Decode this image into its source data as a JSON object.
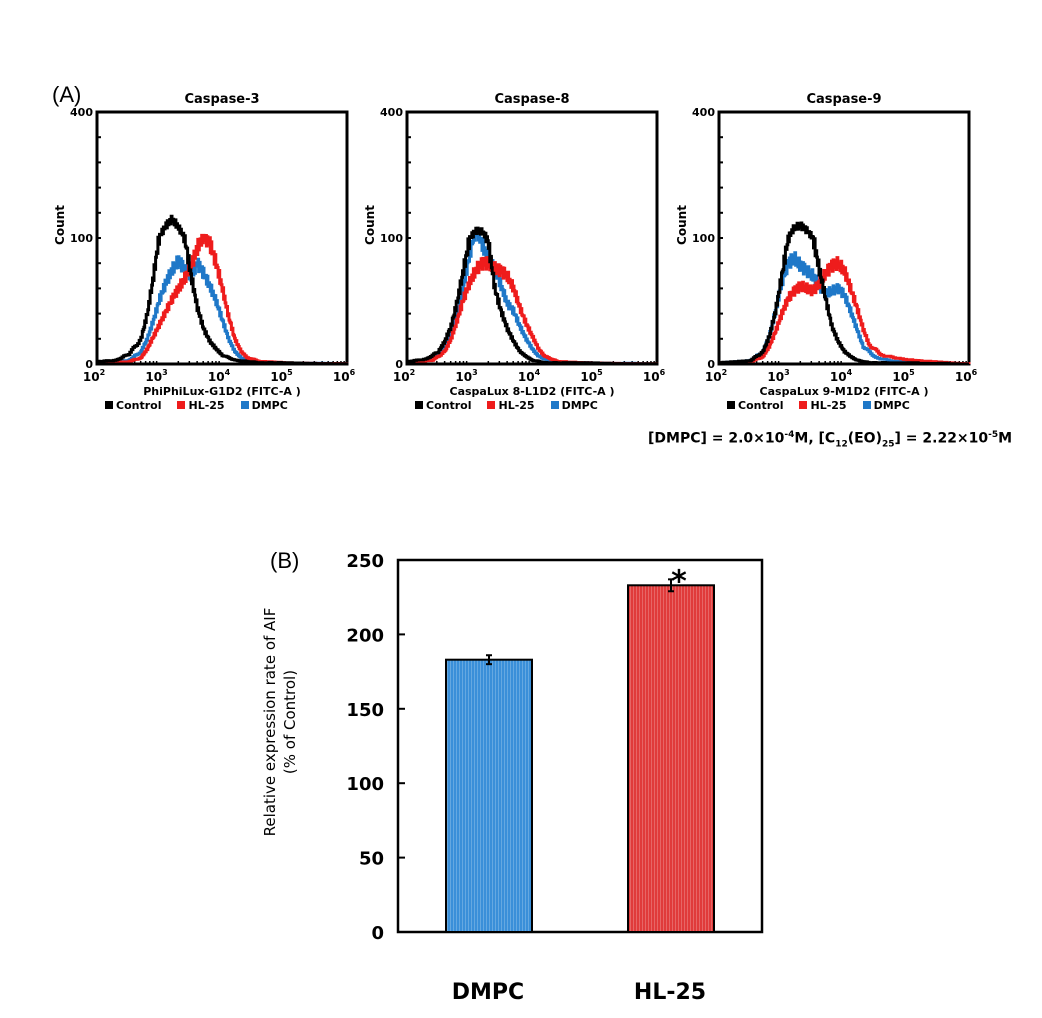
{
  "panel_a_label": "(A)",
  "panel_b_label": "(B)",
  "legend": [
    {
      "name": "Control",
      "color": "#000000"
    },
    {
      "name": "HL-25",
      "color": "#ee1c1c"
    },
    {
      "name": "DMPC",
      "color": "#1f78c8"
    }
  ],
  "note": {
    "part1": "[DMPC] = 2.0×10",
    "exp1": "-4",
    "part2": "M,  [C",
    "sub1": "12",
    "part3": "(EO)",
    "sub2": "25",
    "part4": "] = 2.22×10",
    "exp2": "-5",
    "part5": "M"
  },
  "chart_data": [
    {
      "type": "line",
      "title": "Caspase-3",
      "xlabel": "PhiPhiLux-G1D2 (FITC-A )",
      "ylabel": "Count",
      "xscale": "log",
      "xlim": [
        100,
        1000000
      ],
      "ylim": [
        0,
        400
      ],
      "yticks": [
        "0",
        "100",
        "400"
      ],
      "xticks": [
        "10^2",
        "10^3",
        "10^4",
        "10^5",
        "10^6"
      ],
      "series": [
        {
          "name": "Control",
          "color": "#000000",
          "peak_x": 1600,
          "peak_y": 145,
          "width": 0.28,
          "x_log": [
            2.0,
            2.3,
            2.5,
            2.7,
            2.8,
            2.9,
            3.0,
            3.1,
            3.2,
            3.3,
            3.4,
            3.5,
            3.6,
            3.7,
            3.8,
            3.9,
            4.0,
            4.2,
            4.4,
            4.6,
            5.0,
            6.0
          ],
          "y": [
            2,
            3,
            8,
            20,
            40,
            70,
            105,
            130,
            145,
            125,
            100,
            70,
            45,
            28,
            18,
            12,
            7,
            3,
            2,
            1,
            1,
            0
          ]
        },
        {
          "name": "HL-25",
          "color": "#ee1c1c",
          "x_log": [
            2.0,
            2.5,
            2.7,
            2.8,
            2.9,
            3.0,
            3.1,
            3.2,
            3.3,
            3.4,
            3.5,
            3.6,
            3.7,
            3.8,
            3.9,
            4.0,
            4.1,
            4.2,
            4.3,
            4.4,
            4.6,
            5.0,
            6.0
          ],
          "y": [
            1,
            2,
            5,
            12,
            22,
            32,
            42,
            52,
            60,
            68,
            78,
            92,
            103,
            96,
            80,
            60,
            38,
            20,
            10,
            5,
            2,
            1,
            0
          ]
        },
        {
          "name": "DMPC",
          "color": "#1f78c8",
          "x_log": [
            2.0,
            2.5,
            2.7,
            2.8,
            2.9,
            3.0,
            3.1,
            3.2,
            3.3,
            3.4,
            3.5,
            3.6,
            3.7,
            3.8,
            3.9,
            4.0,
            4.1,
            4.2,
            4.3,
            4.5,
            5.0,
            6.0
          ],
          "y": [
            1,
            3,
            10,
            20,
            35,
            52,
            65,
            75,
            82,
            75,
            70,
            80,
            72,
            62,
            50,
            35,
            20,
            10,
            5,
            2,
            1,
            0
          ]
        }
      ]
    },
    {
      "type": "line",
      "title": "Caspase-8",
      "xlabel": "CaspaLux 8-L1D2 (FITC-A )",
      "ylabel": "Count",
      "xscale": "log",
      "xlim": [
        100,
        1000000
      ],
      "ylim": [
        0,
        400
      ],
      "yticks": [
        "0",
        "100",
        "400"
      ],
      "xticks": [
        "10^2",
        "10^3",
        "10^4",
        "10^5",
        "10^6"
      ],
      "series": [
        {
          "name": "Control",
          "color": "#000000",
          "x_log": [
            2.0,
            2.3,
            2.5,
            2.6,
            2.7,
            2.8,
            2.9,
            3.0,
            3.1,
            3.2,
            3.3,
            3.4,
            3.5,
            3.6,
            3.7,
            3.8,
            3.9,
            4.0,
            4.2,
            4.5,
            6.0
          ],
          "y": [
            2,
            4,
            10,
            18,
            30,
            50,
            75,
            100,
            118,
            115,
            95,
            60,
            42,
            28,
            18,
            10,
            6,
            3,
            1,
            1,
            0
          ]
        },
        {
          "name": "HL-25",
          "color": "#ee1c1c",
          "x_log": [
            2.0,
            2.4,
            2.6,
            2.7,
            2.8,
            2.9,
            3.0,
            3.1,
            3.2,
            3.3,
            3.4,
            3.5,
            3.6,
            3.7,
            3.8,
            3.9,
            4.0,
            4.1,
            4.2,
            4.4,
            4.8,
            6.0
          ],
          "y": [
            1,
            3,
            10,
            20,
            35,
            52,
            65,
            75,
            80,
            80,
            76,
            74,
            70,
            60,
            45,
            32,
            22,
            12,
            6,
            2,
            1,
            0
          ]
        },
        {
          "name": "DMPC",
          "color": "#1f78c8",
          "x_log": [
            2.0,
            2.4,
            2.6,
            2.7,
            2.8,
            2.9,
            3.0,
            3.1,
            3.2,
            3.3,
            3.4,
            3.5,
            3.6,
            3.7,
            3.8,
            3.9,
            4.0,
            4.1,
            4.3,
            4.6,
            6.0
          ],
          "y": [
            1,
            4,
            14,
            25,
            40,
            62,
            88,
            110,
            95,
            82,
            76,
            62,
            48,
            42,
            30,
            20,
            12,
            6,
            2,
            1,
            0
          ]
        }
      ]
    },
    {
      "type": "line",
      "title": "Caspase-9",
      "xlabel": "CaspaLux 9-M1D2 (FITC-A )",
      "ylabel": "Count",
      "xscale": "log",
      "xlim": [
        100,
        1000000
      ],
      "ylim": [
        0,
        400
      ],
      "yticks": [
        "0",
        "100",
        "400"
      ],
      "xticks": [
        "10^2",
        "10^3",
        "10^4",
        "10^5",
        "10^6"
      ],
      "series": [
        {
          "name": "Control",
          "color": "#000000",
          "x_log": [
            2.0,
            2.5,
            2.7,
            2.8,
            2.9,
            3.0,
            3.1,
            3.2,
            3.3,
            3.4,
            3.5,
            3.6,
            3.7,
            3.8,
            3.9,
            4.0,
            4.1,
            4.2,
            4.4,
            4.7,
            6.0
          ],
          "y": [
            1,
            3,
            10,
            22,
            42,
            70,
            100,
            125,
            130,
            118,
            100,
            75,
            52,
            30,
            18,
            10,
            6,
            3,
            1,
            1,
            0
          ]
        },
        {
          "name": "HL-25",
          "color": "#ee1c1c",
          "x_log": [
            2.0,
            2.5,
            2.7,
            2.8,
            2.9,
            3.0,
            3.1,
            3.2,
            3.3,
            3.4,
            3.5,
            3.6,
            3.7,
            3.8,
            3.9,
            4.0,
            4.1,
            4.2,
            4.3,
            4.4,
            4.6,
            4.9,
            5.3,
            6.0
          ],
          "y": [
            1,
            2,
            6,
            14,
            26,
            40,
            52,
            58,
            62,
            60,
            58,
            64,
            72,
            78,
            80,
            74,
            60,
            45,
            28,
            15,
            7,
            4,
            2,
            0
          ]
        },
        {
          "name": "DMPC",
          "color": "#1f78c8",
          "x_log": [
            2.0,
            2.5,
            2.7,
            2.8,
            2.9,
            3.0,
            3.1,
            3.2,
            3.3,
            3.4,
            3.5,
            3.6,
            3.7,
            3.8,
            3.9,
            4.0,
            4.1,
            4.2,
            4.3,
            4.5,
            4.8,
            6.0
          ],
          "y": [
            1,
            3,
            10,
            22,
            42,
            65,
            80,
            84,
            78,
            74,
            70,
            62,
            56,
            58,
            60,
            55,
            42,
            28,
            14,
            5,
            2,
            0
          ]
        }
      ]
    },
    {
      "type": "bar",
      "title": "",
      "categories": [
        "DMPC",
        "HL-25"
      ],
      "values": [
        183,
        233
      ],
      "errors": [
        3,
        4
      ],
      "colors": [
        "#3a8fd9",
        "#e03b3b"
      ],
      "annotations": [
        {
          "category": "HL-25",
          "text": "*"
        }
      ],
      "xlabel": "",
      "ylabel_line1": "Relative expression rate of AIF",
      "ylabel_line2": "(% of Control)",
      "ylim": [
        0,
        250
      ],
      "yticks": [
        "0",
        "50",
        "100",
        "150",
        "200",
        "250"
      ]
    }
  ]
}
